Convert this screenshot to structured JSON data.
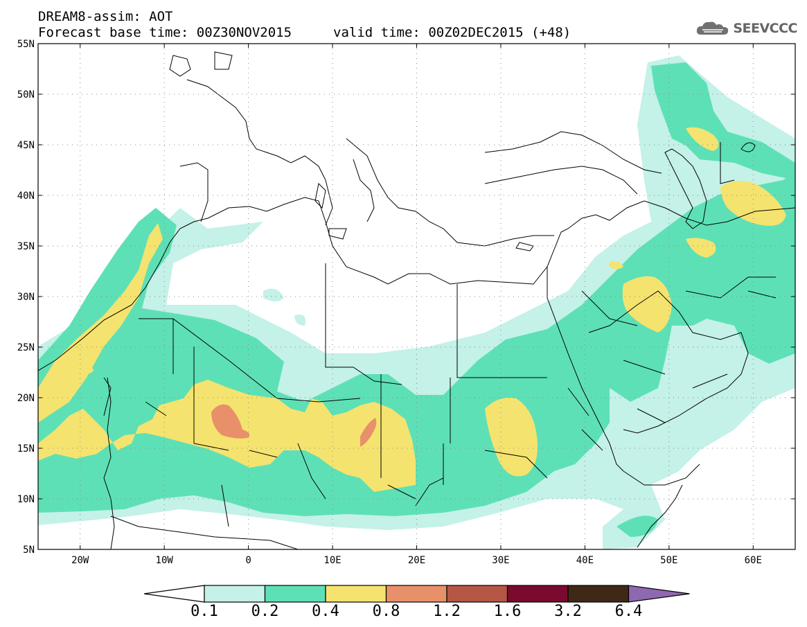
{
  "header": {
    "product": "DREAM8-assim: AOT",
    "base_time": "Forecast base time: 00Z30NOV2015",
    "valid_time": "valid time: 00Z02DEC2015 (+48)"
  },
  "logo": {
    "text": "SEEVCCC",
    "icon": "cloud-logo-icon"
  },
  "map": {
    "lon_range": [
      -25,
      65
    ],
    "lat_range": [
      5,
      55
    ],
    "lat_labels": [
      "5N",
      "10N",
      "15N",
      "20N",
      "25N",
      "30N",
      "35N",
      "40N",
      "45N",
      "50N",
      "55N"
    ],
    "lat_values": [
      5,
      10,
      15,
      20,
      25,
      30,
      35,
      40,
      45,
      50,
      55
    ],
    "lon_labels": [
      "20W",
      "10W",
      "0",
      "10E",
      "20E",
      "30E",
      "40E",
      "50E",
      "60E"
    ],
    "lon_values": [
      -20,
      -10,
      0,
      10,
      20,
      30,
      40,
      50,
      60
    ]
  },
  "colorbar": {
    "labels": [
      "0.1",
      "0.2",
      "0.4",
      "0.8",
      "1.2",
      "1.6",
      "3.2",
      "6.4"
    ],
    "colors": [
      "#c4f1e8",
      "#5ee0b6",
      "#f5e36f",
      "#e8906a",
      "#b55745",
      "#7a0a2e",
      "#402817",
      "#8e68b0"
    ]
  }
}
